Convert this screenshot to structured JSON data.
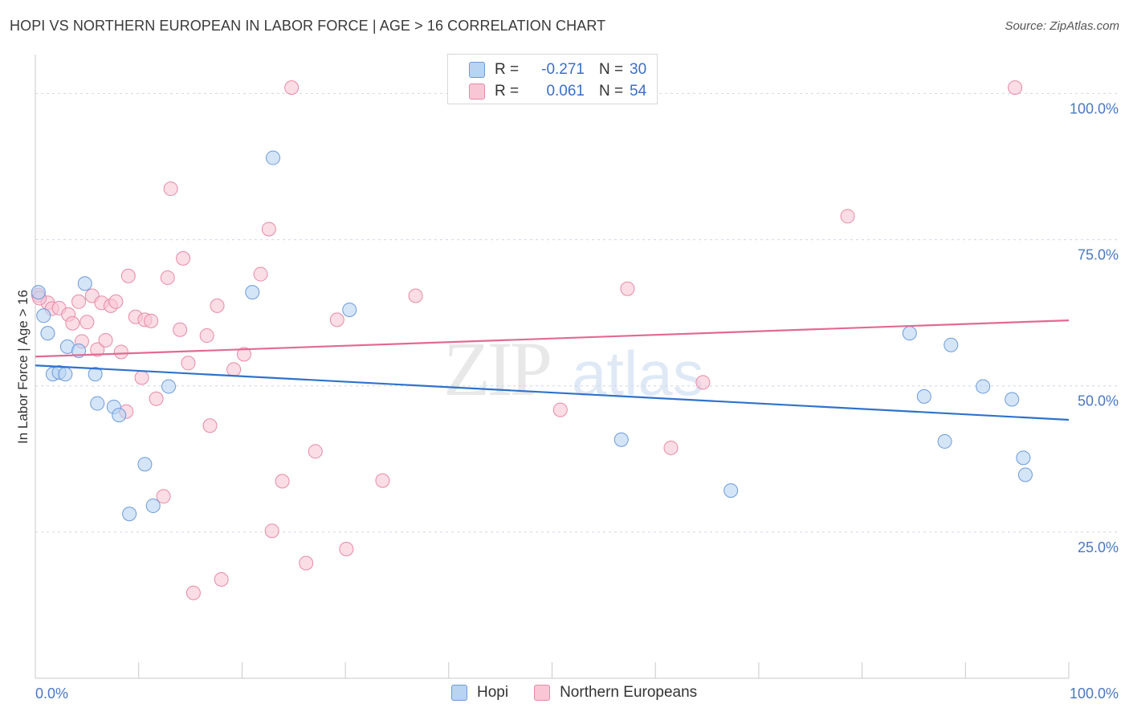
{
  "header": {
    "title": "HOPI VS NORTHERN EUROPEAN IN LABOR FORCE | AGE > 16 CORRELATION CHART",
    "source": "Source: ZipAtlas.com"
  },
  "legend": {
    "rows": [
      {
        "r_label": "R =",
        "r_value": "-0.271",
        "n_label": "N =",
        "n_value": "30"
      },
      {
        "r_label": "R =",
        "r_value": "0.061",
        "n_label": "N =",
        "n_value": "54"
      }
    ]
  },
  "watermark": {
    "part1": "ZIP",
    "part2": "atlas"
  },
  "colors": {
    "hopi_fill": "#b9d3f3",
    "hopi_stroke": "#6b9bd9",
    "hopi_line": "#2f72cc",
    "ne_fill": "#f9c6d5",
    "ne_stroke": "#e88aa8",
    "ne_line": "#e26a92",
    "grid": "#cfd6e4",
    "tick_text": "#4a78c2"
  },
  "chart_data": {
    "type": "scatter",
    "title": "HOPI VS NORTHERN EUROPEAN IN LABOR FORCE | AGE > 16 CORRELATION CHART",
    "xlabel": "",
    "ylabel": "In Labor Force | Age > 16",
    "xlim": [
      0,
      100
    ],
    "ylim": [
      0,
      105
    ],
    "x_tick_labels": [
      "0.0%",
      "100.0%"
    ],
    "y_ticks": [
      25,
      50,
      75,
      100
    ],
    "y_tick_labels": [
      "25.0%",
      "50.0%",
      "75.0%",
      "100.0%"
    ],
    "grid": true,
    "legend_position": "bottom-center",
    "series": [
      {
        "name": "Hopi",
        "r": -0.271,
        "n": 30,
        "trend": {
          "x": [
            0,
            100
          ],
          "y": [
            53.5,
            44.2
          ]
        },
        "points": [
          {
            "x": 0.3,
            "y": 66
          },
          {
            "x": 0.8,
            "y": 62
          },
          {
            "x": 1.2,
            "y": 59
          },
          {
            "x": 1.7,
            "y": 52
          },
          {
            "x": 2.3,
            "y": 52.3
          },
          {
            "x": 2.9,
            "y": 52
          },
          {
            "x": 3.1,
            "y": 56.7
          },
          {
            "x": 4.2,
            "y": 56
          },
          {
            "x": 4.8,
            "y": 67.5
          },
          {
            "x": 5.8,
            "y": 52
          },
          {
            "x": 6.0,
            "y": 47
          },
          {
            "x": 7.6,
            "y": 46.4
          },
          {
            "x": 8.1,
            "y": 45
          },
          {
            "x": 9.1,
            "y": 28.1
          },
          {
            "x": 10.6,
            "y": 36.6
          },
          {
            "x": 11.4,
            "y": 29.5
          },
          {
            "x": 12.9,
            "y": 49.9
          },
          {
            "x": 21.0,
            "y": 66
          },
          {
            "x": 23.0,
            "y": 89
          },
          {
            "x": 30.4,
            "y": 63
          },
          {
            "x": 56.7,
            "y": 40.8
          },
          {
            "x": 67.3,
            "y": 32.1
          },
          {
            "x": 84.6,
            "y": 59
          },
          {
            "x": 86.0,
            "y": 48.2
          },
          {
            "x": 88.0,
            "y": 40.5
          },
          {
            "x": 88.6,
            "y": 57
          },
          {
            "x": 91.7,
            "y": 49.9
          },
          {
            "x": 94.5,
            "y": 47.7
          },
          {
            "x": 95.6,
            "y": 37.7
          },
          {
            "x": 95.8,
            "y": 34.8
          }
        ]
      },
      {
        "name": "Northern Europeans",
        "r": 0.061,
        "n": 54,
        "trend": {
          "x": [
            0,
            100
          ],
          "y": [
            55.0,
            61.2
          ]
        },
        "points": [
          {
            "x": 0.3,
            "y": 65.5
          },
          {
            "x": 1.2,
            "y": 64.2
          },
          {
            "x": 1.6,
            "y": 63.2
          },
          {
            "x": 2.3,
            "y": 63.3
          },
          {
            "x": 3.2,
            "y": 62.2
          },
          {
            "x": 3.6,
            "y": 60.7
          },
          {
            "x": 4.2,
            "y": 64.4
          },
          {
            "x": 4.5,
            "y": 57.6
          },
          {
            "x": 5.0,
            "y": 60.9
          },
          {
            "x": 5.5,
            "y": 65.4
          },
          {
            "x": 6.0,
            "y": 56.2
          },
          {
            "x": 6.4,
            "y": 64.2
          },
          {
            "x": 6.8,
            "y": 57.8
          },
          {
            "x": 7.3,
            "y": 63.7
          },
          {
            "x": 7.8,
            "y": 64.4
          },
          {
            "x": 8.3,
            "y": 55.8
          },
          {
            "x": 8.8,
            "y": 45.6
          },
          {
            "x": 9.0,
            "y": 68.8
          },
          {
            "x": 9.7,
            "y": 61.8
          },
          {
            "x": 10.3,
            "y": 51.4
          },
          {
            "x": 10.6,
            "y": 61.3
          },
          {
            "x": 11.2,
            "y": 61.1
          },
          {
            "x": 11.7,
            "y": 47.8
          },
          {
            "x": 12.4,
            "y": 31.1
          },
          {
            "x": 12.8,
            "y": 68.5
          },
          {
            "x": 13.1,
            "y": 83.7
          },
          {
            "x": 14.0,
            "y": 59.6
          },
          {
            "x": 14.3,
            "y": 71.8
          },
          {
            "x": 14.8,
            "y": 53.9
          },
          {
            "x": 15.3,
            "y": 14.6
          },
          {
            "x": 16.6,
            "y": 58.6
          },
          {
            "x": 16.9,
            "y": 43.2
          },
          {
            "x": 17.6,
            "y": 63.7
          },
          {
            "x": 18.0,
            "y": 16.9
          },
          {
            "x": 19.2,
            "y": 52.8
          },
          {
            "x": 20.2,
            "y": 55.4
          },
          {
            "x": 21.8,
            "y": 69.1
          },
          {
            "x": 22.6,
            "y": 76.8
          },
          {
            "x": 22.9,
            "y": 25.2
          },
          {
            "x": 23.9,
            "y": 33.7
          },
          {
            "x": 24.8,
            "y": 101
          },
          {
            "x": 26.2,
            "y": 19.7
          },
          {
            "x": 27.1,
            "y": 38.8
          },
          {
            "x": 29.2,
            "y": 61.3
          },
          {
            "x": 30.1,
            "y": 22.1
          },
          {
            "x": 33.6,
            "y": 33.8
          },
          {
            "x": 36.8,
            "y": 65.4
          },
          {
            "x": 50.8,
            "y": 45.9
          },
          {
            "x": 57.3,
            "y": 66.6
          },
          {
            "x": 61.5,
            "y": 39.4
          },
          {
            "x": 64.6,
            "y": 50.6
          },
          {
            "x": 78.6,
            "y": 79.0
          },
          {
            "x": 94.8,
            "y": 101
          },
          {
            "x": 0.4,
            "y": 65.0
          }
        ]
      }
    ]
  }
}
